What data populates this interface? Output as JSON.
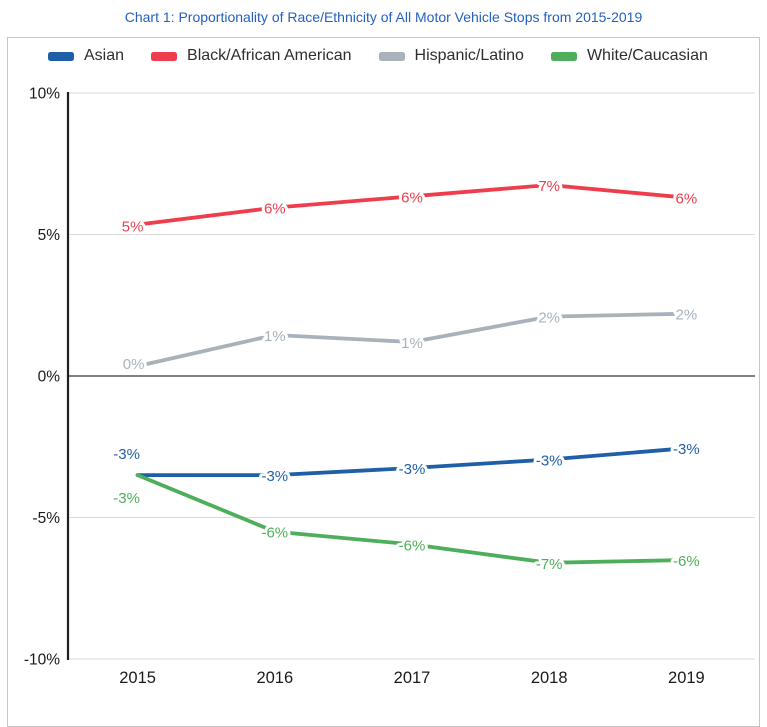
{
  "colors": {
    "title_text": "#2460c2",
    "legend_text": "#2e2e2e",
    "tick_text": "#1a1a1a",
    "axis_line": "#1f1f1f",
    "zero_line": "#6f6f6f",
    "gridline": "#d9d9d9",
    "box_border": "#c6c6c6",
    "background": "#ffffff",
    "label_halo": "#ffffff"
  },
  "chart_data": {
    "type": "line",
    "title": "Chart 1: Proportionality of Race/Ethnicity of All Motor Vehicle Stops from 2015-2019",
    "categories": [
      "2015",
      "2016",
      "2017",
      "2018",
      "2019"
    ],
    "xlabel": "",
    "ylabel": "",
    "ylim": [
      -10,
      10
    ],
    "y_tick_values": [
      10,
      5,
      0,
      -5,
      -10
    ],
    "y_tick_labels": [
      "10%",
      "5%",
      "0%",
      "-5%",
      "-10%"
    ],
    "grid": true,
    "legend_position": "top",
    "series": [
      {
        "name": "Asian",
        "color": "#1f5fa8",
        "values": [
          -3,
          -3,
          -3,
          -3,
          -3
        ],
        "labels": [
          "-3%",
          "-3%",
          "-3%",
          "-3%",
          "-3%"
        ],
        "plot_values": [
          -3.5,
          -3.5,
          -3.25,
          -2.95,
          -2.55
        ],
        "label_offsets": {
          "0": [
            -11,
            -21
          ]
        }
      },
      {
        "name": "Black/African American",
        "color": "#ee3d4d",
        "values": [
          5,
          6,
          6,
          7,
          6
        ],
        "labels": [
          "5%",
          "6%",
          "6%",
          "7%",
          "6%"
        ],
        "plot_values": [
          5.35,
          5.95,
          6.35,
          6.75,
          6.3
        ],
        "label_offsets": {
          "0": [
            -5,
            2
          ]
        }
      },
      {
        "name": "Hispanic/Latino",
        "color": "#a9b2bb",
        "values": [
          0,
          1,
          1,
          2,
          2
        ],
        "labels": [
          "0%",
          "1%",
          "1%",
          "2%",
          "2%"
        ],
        "plot_values": [
          0.35,
          1.45,
          1.2,
          2.1,
          2.2
        ],
        "label_offsets": {
          "0": [
            -4,
            -2
          ]
        }
      },
      {
        "name": "White/Caucasian",
        "color": "#4fae5b",
        "values": [
          -3,
          -6,
          -6,
          -7,
          -6
        ],
        "labels": [
          "-3%",
          "-6%",
          "-6%",
          "-7%",
          "-6%"
        ],
        "plot_values": [
          -3.5,
          -5.5,
          -5.95,
          -6.6,
          -6.5
        ],
        "label_offsets": {
          "0": [
            -11,
            23
          ]
        }
      }
    ]
  }
}
